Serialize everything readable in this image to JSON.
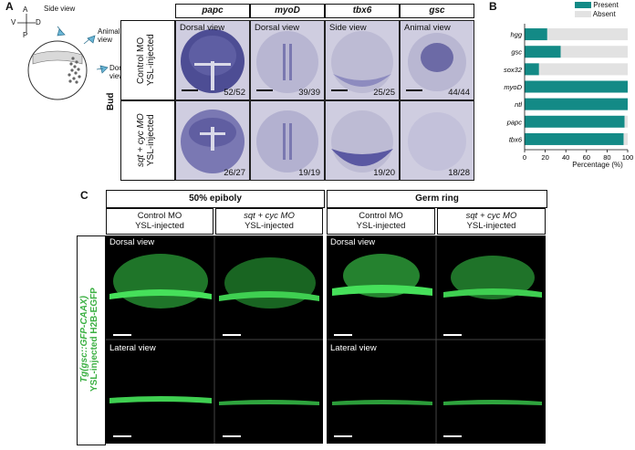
{
  "panel_a": {
    "letter": "A",
    "axes": {
      "top": "A",
      "bottom": "P",
      "left": "V",
      "right": "D"
    },
    "schematic_labels": {
      "side": "Side view",
      "animal": "Animal view",
      "dorsal": "Dorsal view"
    },
    "stage_label": "Bud",
    "columns": [
      "papc",
      "myoD",
      "tbx6",
      "gsc"
    ],
    "rows": [
      {
        "label_line1": "Control MO",
        "label_line2": "YSL-injected",
        "cells": [
          {
            "view": "Dorsal view",
            "count": "52/52"
          },
          {
            "view": "Dorsal view",
            "count": "39/39"
          },
          {
            "view": "Side view",
            "count": "25/25"
          },
          {
            "view": "Animal view",
            "count": "44/44"
          }
        ]
      },
      {
        "label_line1": "sqt + cyc MO",
        "label_line2": "YSL-injected",
        "cells": [
          {
            "view": "",
            "count": "26/27"
          },
          {
            "view": "",
            "count": "19/19"
          },
          {
            "view": "",
            "count": "19/20"
          },
          {
            "view": "",
            "count": "18/28"
          }
        ]
      }
    ]
  },
  "chart_data": {
    "type": "bar",
    "orientation": "horizontal",
    "stacked": true,
    "categories": [
      "hgg",
      "gsc",
      "sox32",
      "myoD",
      "ntl",
      "papc",
      "tbx6"
    ],
    "series": [
      {
        "name": "Present",
        "color": "#138a86",
        "values": [
          22,
          35,
          14,
          100,
          100,
          97,
          96
        ]
      },
      {
        "name": "Absent",
        "color": "#e2e2e2",
        "values": [
          78,
          65,
          86,
          0,
          0,
          3,
          4
        ]
      }
    ],
    "xlabel": "Percentage (%)",
    "xlim": [
      0,
      100
    ],
    "xticks": [
      "0",
      "20",
      "40",
      "60",
      "80",
      "100"
    ],
    "legend": "top-right"
  },
  "panel_b": {
    "letter": "B"
  },
  "panel_c": {
    "letter": "C",
    "y_label_line1": "Tg(gsc::GFP-CAAX)",
    "y_label_line2": "YSL-injected H2B-EGFP",
    "groups": [
      {
        "title": "50% epiboly",
        "conditions": [
          {
            "line1": "Control MO",
            "line2": "YSL-injected"
          },
          {
            "line1": "sqt + cyc MO",
            "line2": "YSL-injected"
          }
        ]
      },
      {
        "title": "Germ ring",
        "conditions": [
          {
            "line1": "Control MO",
            "line2": "YSL-injected"
          },
          {
            "line1": "sqt + cyc MO",
            "line2": "YSL-injected"
          }
        ]
      }
    ],
    "row_views": [
      "Dorsal view",
      "Lateral view"
    ],
    "colors": {
      "fluorescence": "#37d24a",
      "background": "#000000",
      "label_green": "#3cb043"
    }
  }
}
